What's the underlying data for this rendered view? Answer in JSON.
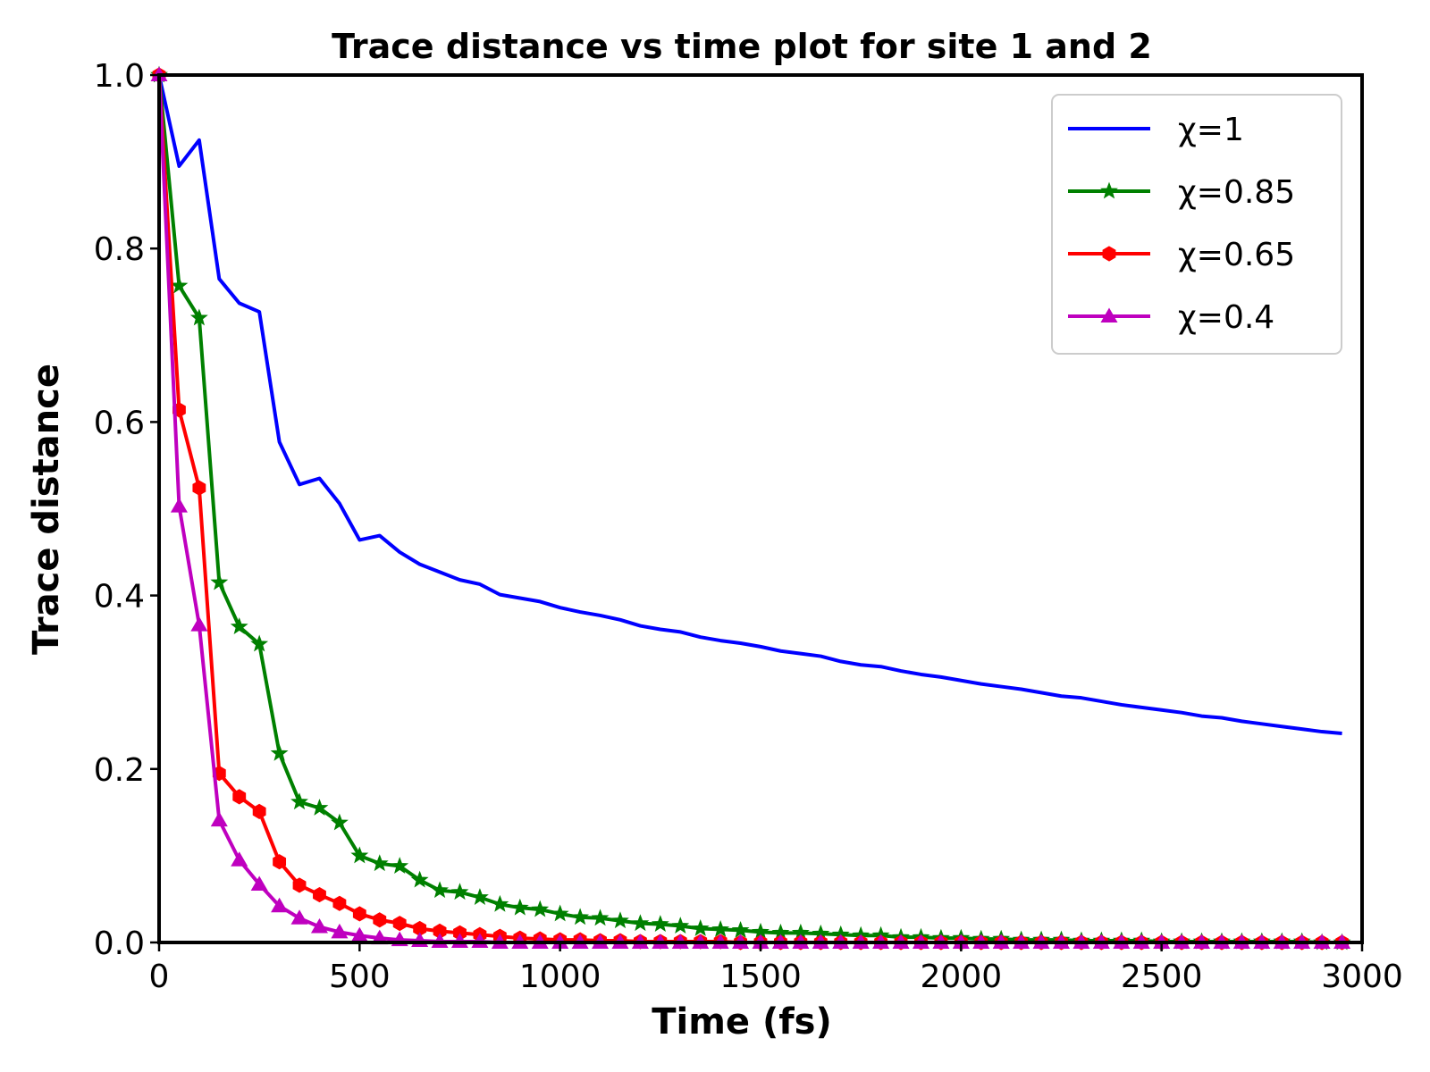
{
  "chart_data": {
    "type": "line",
    "title": "Trace distance vs time plot for site 1 and 2",
    "xlabel": "Time (fs)",
    "ylabel": "Trace distance",
    "xlim": [
      0,
      3000
    ],
    "ylim": [
      0,
      1.0
    ],
    "xticks": [
      0,
      500,
      1000,
      1500,
      2000,
      2500,
      3000
    ],
    "yticks": [
      0.0,
      0.2,
      0.4,
      0.6,
      0.8,
      1.0
    ],
    "xtick_labels": [
      "0",
      "500",
      "1000",
      "1500",
      "2000",
      "2500",
      "3000"
    ],
    "ytick_labels": [
      "0.0",
      "0.2",
      "0.4",
      "0.6",
      "0.8",
      "1.0"
    ],
    "grid": false,
    "legend_position": "top-right",
    "x": [
      0,
      50,
      100,
      150,
      200,
      250,
      300,
      350,
      400,
      450,
      500,
      550,
      600,
      650,
      700,
      750,
      800,
      850,
      900,
      950,
      1000,
      1050,
      1100,
      1150,
      1200,
      1250,
      1300,
      1350,
      1400,
      1450,
      1500,
      1550,
      1600,
      1650,
      1700,
      1750,
      1800,
      1850,
      1900,
      1950,
      2000,
      2050,
      2100,
      2150,
      2200,
      2250,
      2300,
      2350,
      2400,
      2450,
      2500,
      2550,
      2600,
      2650,
      2700,
      2750,
      2800,
      2850,
      2900,
      2950
    ],
    "series": [
      {
        "name": "χ=1",
        "color": "#0000ff",
        "marker": "none",
        "values": [
          1.0,
          0.895,
          0.925,
          0.765,
          0.737,
          0.727,
          0.577,
          0.528,
          0.535,
          0.506,
          0.464,
          0.469,
          0.45,
          0.436,
          0.427,
          0.418,
          0.413,
          0.401,
          0.397,
          0.393,
          0.386,
          0.381,
          0.377,
          0.372,
          0.365,
          0.361,
          0.358,
          0.352,
          0.348,
          0.345,
          0.341,
          0.336,
          0.333,
          0.33,
          0.324,
          0.32,
          0.318,
          0.313,
          0.309,
          0.306,
          0.302,
          0.298,
          0.295,
          0.292,
          0.288,
          0.284,
          0.282,
          0.278,
          0.274,
          0.271,
          0.268,
          0.265,
          0.261,
          0.259,
          0.255,
          0.252,
          0.249,
          0.246,
          0.243,
          0.241
        ]
      },
      {
        "name": "χ=0.85",
        "color": "#008000",
        "marker": "star",
        "values": [
          1.0,
          0.757,
          0.72,
          0.415,
          0.364,
          0.344,
          0.218,
          0.162,
          0.155,
          0.138,
          0.1,
          0.091,
          0.088,
          0.072,
          0.06,
          0.058,
          0.052,
          0.044,
          0.04,
          0.038,
          0.033,
          0.029,
          0.028,
          0.025,
          0.022,
          0.021,
          0.019,
          0.016,
          0.015,
          0.014,
          0.012,
          0.011,
          0.011,
          0.01,
          0.009,
          0.008,
          0.008,
          0.006,
          0.006,
          0.005,
          0.005,
          0.004,
          0.004,
          0.003,
          0.003,
          0.003,
          0.002,
          0.002,
          0.002,
          0.002,
          0.001,
          0.001,
          0.001,
          0.001,
          0.001,
          0.001,
          0.001,
          0.001,
          0.0,
          0.0
        ]
      },
      {
        "name": "χ=0.65",
        "color": "#ff0000",
        "marker": "hexagon",
        "values": [
          1.0,
          0.614,
          0.524,
          0.195,
          0.168,
          0.151,
          0.093,
          0.066,
          0.055,
          0.045,
          0.033,
          0.026,
          0.022,
          0.016,
          0.013,
          0.011,
          0.009,
          0.007,
          0.005,
          0.004,
          0.003,
          0.003,
          0.002,
          0.002,
          0.001,
          0.001,
          0.001,
          0.001,
          0.001,
          0.0,
          0.0,
          0.0,
          0.0,
          0.0,
          0.0,
          0.0,
          0.0,
          0.0,
          0.0,
          0.0,
          0.0,
          0.0,
          0.0,
          0.0,
          0.0,
          0.0,
          0.0,
          0.0,
          0.0,
          0.0,
          0.0,
          0.0,
          0.0,
          0.0,
          0.0,
          0.0,
          0.0,
          0.0,
          0.0,
          0.0
        ]
      },
      {
        "name": "χ=0.4",
        "color": "#bf00bf",
        "marker": "triangle",
        "values": [
          1.0,
          0.503,
          0.366,
          0.141,
          0.095,
          0.067,
          0.042,
          0.028,
          0.018,
          0.012,
          0.008,
          0.005,
          0.003,
          0.002,
          0.001,
          0.001,
          0.001,
          0.0,
          0.0,
          0.0,
          0.0,
          0.0,
          0.0,
          0.0,
          0.0,
          0.0,
          0.0,
          0.0,
          0.0,
          0.0,
          0.0,
          0.0,
          0.0,
          0.0,
          0.0,
          0.0,
          0.0,
          0.0,
          0.0,
          0.0,
          0.0,
          0.0,
          0.0,
          0.0,
          0.0,
          0.0,
          0.0,
          0.0,
          0.0,
          0.0,
          0.0,
          0.0,
          0.0,
          0.0,
          0.0,
          0.0,
          0.0,
          0.0,
          0.0,
          0.0
        ]
      }
    ]
  }
}
